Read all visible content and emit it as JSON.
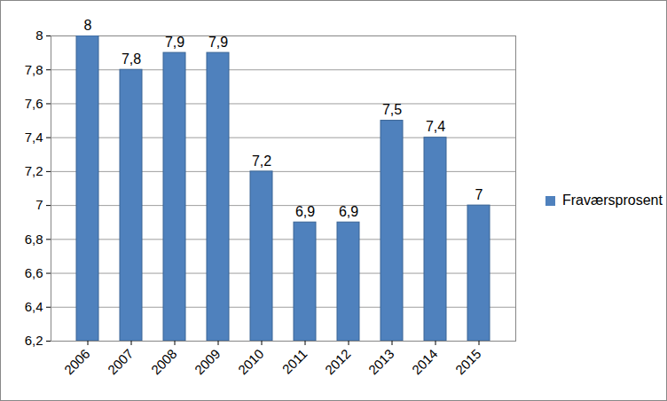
{
  "chart_data": {
    "type": "bar",
    "categories": [
      "2006",
      "2007",
      "2008",
      "2009",
      "2010",
      "2011",
      "2012",
      "2013",
      "2014",
      "2015"
    ],
    "series": [
      {
        "name": "Fraværsprosent",
        "color": "#4f81bd",
        "values": [
          8,
          7.8,
          7.9,
          7.9,
          7.2,
          6.9,
          6.9,
          7.5,
          7.4,
          7
        ],
        "value_labels": [
          "8",
          "7,8",
          "7,9",
          "7,9",
          "7,2",
          "6,9",
          "6,9",
          "7,5",
          "7,4",
          "7"
        ]
      }
    ],
    "ylim": [
      6.2,
      8
    ],
    "yticks": [
      {
        "value": 6.2,
        "label": "6,2"
      },
      {
        "value": 6.4,
        "label": "6,4"
      },
      {
        "value": 6.6,
        "label": "6,6"
      },
      {
        "value": 6.8,
        "label": "6,8"
      },
      7,
      {
        "value": 7.2,
        "label": "7,2"
      },
      {
        "value": 7.4,
        "label": "7,4"
      },
      {
        "value": 7.6,
        "label": "7,6"
      },
      {
        "value": 7.8,
        "label": "7,8"
      },
      8
    ],
    "grid": true,
    "legend": "right",
    "data_labels": true
  }
}
